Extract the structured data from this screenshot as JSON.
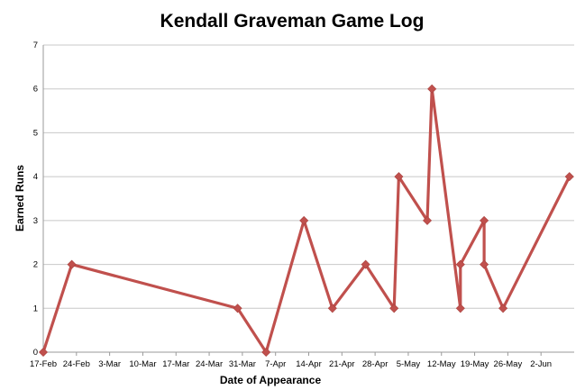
{
  "chart_data": {
    "type": "line",
    "title": "Kendall Graveman Game Log",
    "xlabel": "Date of Appearance",
    "ylabel": "Earned Runs",
    "ylim": [
      0,
      7
    ],
    "yticks": [
      "0",
      "1",
      "2",
      "3",
      "4",
      "5",
      "6",
      "7"
    ],
    "xlim": [
      "2014-02-17",
      "2014-06-09"
    ],
    "xticks": [
      {
        "date": "2014-02-17",
        "label": "17-Feb"
      },
      {
        "date": "2014-02-24",
        "label": "24-Feb"
      },
      {
        "date": "2014-03-03",
        "label": "3-Mar"
      },
      {
        "date": "2014-03-10",
        "label": "10-Mar"
      },
      {
        "date": "2014-03-17",
        "label": "17-Mar"
      },
      {
        "date": "2014-03-24",
        "label": "24-Mar"
      },
      {
        "date": "2014-03-31",
        "label": "31-Mar"
      },
      {
        "date": "2014-04-07",
        "label": "7-Apr"
      },
      {
        "date": "2014-04-14",
        "label": "14-Apr"
      },
      {
        "date": "2014-04-21",
        "label": "21-Apr"
      },
      {
        "date": "2014-04-28",
        "label": "28-Apr"
      },
      {
        "date": "2014-05-05",
        "label": "5-May"
      },
      {
        "date": "2014-05-12",
        "label": "12-May"
      },
      {
        "date": "2014-05-19",
        "label": "19-May"
      },
      {
        "date": "2014-05-26",
        "label": "26-May"
      },
      {
        "date": "2014-06-02",
        "label": "2-Jun"
      }
    ],
    "grid": true,
    "color": "#c0504d",
    "series": [
      {
        "x": [
          "2014-02-17",
          "2014-02-23",
          "2014-03-30",
          "2014-04-05",
          "2014-04-13",
          "2014-04-19",
          "2014-04-26",
          "2014-05-02",
          "2014-05-03",
          "2014-05-09",
          "2014-05-10",
          "2014-05-16",
          "2014-05-16",
          "2014-05-21",
          "2014-05-21",
          "2014-05-25",
          "2014-06-08"
        ],
        "values": [
          0,
          2,
          1,
          0,
          3,
          1,
          2,
          1,
          4,
          3,
          6,
          1,
          2,
          3,
          2,
          1,
          4
        ]
      }
    ]
  }
}
